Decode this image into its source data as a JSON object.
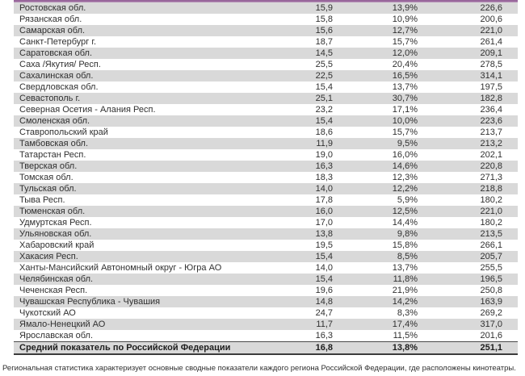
{
  "colors": {
    "accent_purple": "#9c6b9e",
    "row_shade_gray": "#d9d9d9",
    "text_dark": "#303030"
  },
  "table": {
    "rows": [
      {
        "name": "Ростовская обл.",
        "v1": "15,9",
        "v2": "13,9%",
        "v3": "226,6"
      },
      {
        "name": "Рязанская обл.",
        "v1": "15,8",
        "v2": "10,9%",
        "v3": "200,6"
      },
      {
        "name": "Самарская обл.",
        "v1": "15,6",
        "v2": "12,7%",
        "v3": "221,0"
      },
      {
        "name": "Санкт-Петербург г.",
        "v1": "18,7",
        "v2": "15,7%",
        "v3": "261,4"
      },
      {
        "name": "Саратовская обл.",
        "v1": "14,5",
        "v2": "12,0%",
        "v3": "209,1"
      },
      {
        "name": "Саха /Якутия/ Респ.",
        "v1": "25,5",
        "v2": "20,4%",
        "v3": "278,5"
      },
      {
        "name": "Сахалинская обл.",
        "v1": "22,5",
        "v2": "16,5%",
        "v3": "314,1"
      },
      {
        "name": "Свердловская обл.",
        "v1": "15,4",
        "v2": "13,7%",
        "v3": "197,5"
      },
      {
        "name": "Севастополь г.",
        "v1": "25,1",
        "v2": "30,7%",
        "v3": "182,8"
      },
      {
        "name": "Северная Осетия - Алания Респ.",
        "v1": "23,2",
        "v2": "17,1%",
        "v3": "236,4"
      },
      {
        "name": "Смоленская обл.",
        "v1": "15,4",
        "v2": "10,0%",
        "v3": "223,6"
      },
      {
        "name": "Ставропольский край",
        "v1": "18,6",
        "v2": "15,7%",
        "v3": "213,7"
      },
      {
        "name": "Тамбовская обл.",
        "v1": "11,9",
        "v2": "9,5%",
        "v3": "213,2"
      },
      {
        "name": "Татарстан Респ.",
        "v1": "19,0",
        "v2": "16,0%",
        "v3": "202,1"
      },
      {
        "name": "Тверская обл.",
        "v1": "16,3",
        "v2": "14,6%",
        "v3": "220,8"
      },
      {
        "name": "Томская обл.",
        "v1": "18,3",
        "v2": "12,3%",
        "v3": "271,3"
      },
      {
        "name": "Тульская обл.",
        "v1": "14,0",
        "v2": "12,2%",
        "v3": "218,8"
      },
      {
        "name": "Тыва Респ.",
        "v1": "17,8",
        "v2": "5,9%",
        "v3": "180,2"
      },
      {
        "name": "Тюменская обл.",
        "v1": "16,0",
        "v2": "12,5%",
        "v3": "221,0"
      },
      {
        "name": "Удмуртская Респ.",
        "v1": "17,0",
        "v2": "14,4%",
        "v3": "180,2"
      },
      {
        "name": "Ульяновская обл.",
        "v1": "13,8",
        "v2": "9,8%",
        "v3": "213,5"
      },
      {
        "name": "Хабаровский край",
        "v1": "19,5",
        "v2": "15,8%",
        "v3": "266,1"
      },
      {
        "name": "Хакасия Респ.",
        "v1": "15,4",
        "v2": "8,5%",
        "v3": "205,7"
      },
      {
        "name": "Ханты-Мансийский Автономный округ - Югра АО",
        "v1": "14,0",
        "v2": "13,7%",
        "v3": "255,5"
      },
      {
        "name": "Челябинская обл.",
        "v1": "15,4",
        "v2": "11,8%",
        "v3": "196,5"
      },
      {
        "name": "Чеченская Респ.",
        "v1": "19,6",
        "v2": "21,9%",
        "v3": "250,8"
      },
      {
        "name": "Чувашская Республика - Чувашия",
        "v1": "14,8",
        "v2": "14,2%",
        "v3": "163,9"
      },
      {
        "name": "Чукотский АО",
        "v1": "24,7",
        "v2": "8,3%",
        "v3": "269,2"
      },
      {
        "name": "Ямало-Ненецкий АО",
        "v1": "11,7",
        "v2": "17,4%",
        "v3": "317,0"
      },
      {
        "name": "Ярославская обл.",
        "v1": "16,3",
        "v2": "11,5%",
        "v3": "201,6"
      }
    ],
    "summary": {
      "name": "Средний показатель по Российской Федерации",
      "v1": "16,8",
      "v2": "13,8%",
      "v3": "251,1"
    }
  },
  "footnote": {
    "text": "Региональная статистика характеризует основные сводные показатели каждого региона Российской Федерации, где расположены кинотеатры."
  }
}
